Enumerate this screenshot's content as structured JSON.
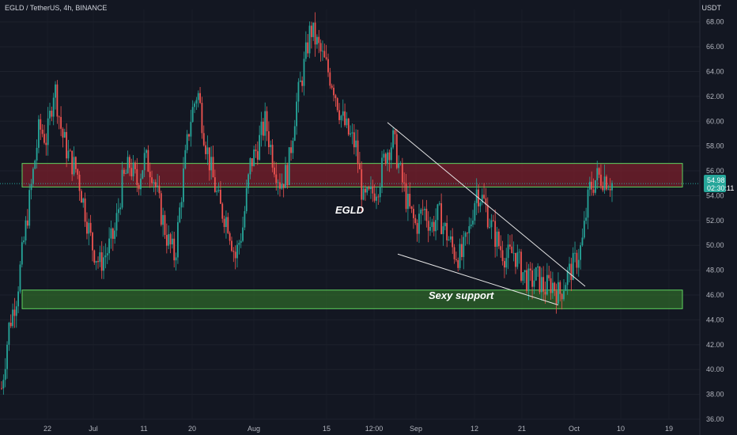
{
  "header": {
    "title": "EGLD / TetherUS, 4h, BINANCE",
    "unit": "USDT"
  },
  "colors": {
    "background": "#131722",
    "up": "#26a69a",
    "down": "#ef5350",
    "resistance_fill": "#7a1f2b",
    "support_fill": "#2f6b2a",
    "zone_border": "#5fd35f",
    "trendline": "#e6e6e6",
    "price_tag": "#26a69a"
  },
  "chart_data": {
    "type": "candlestick",
    "ylim": [
      36,
      69
    ],
    "yticks": [
      "36.00",
      "38.00",
      "40.00",
      "42.00",
      "44.00",
      "46.00",
      "48.00",
      "50.00",
      "52.00",
      "54.00",
      "56.00",
      "58.00",
      "60.00",
      "62.00",
      "64.00",
      "66.00",
      "68.00"
    ],
    "xticks": [
      "22",
      "Jul",
      "11",
      "20",
      "Aug",
      "15",
      "12:00",
      "Sep",
      "12",
      "21",
      "Oct",
      "10",
      "19"
    ],
    "last_price": "54.98",
    "countdown": "02:30:11",
    "close_approx": [
      38.5,
      43.5,
      46.0,
      50.5,
      55.0,
      59.5,
      58.5,
      63.0,
      59.0,
      57.0,
      56.0,
      53.0,
      50.0,
      48.5,
      49.5,
      51.0,
      55.0,
      56.5,
      55.0,
      57.0,
      56.0,
      53.0,
      50.5,
      49.0,
      55.0,
      60.0,
      62.5,
      58.5,
      55.5,
      53.0,
      52.0,
      49.0,
      51.5,
      56.5,
      58.0,
      60.0,
      57.0,
      55.0,
      56.0,
      61.0,
      64.0,
      67.5,
      66.0,
      64.5,
      63.0,
      60.5,
      59.0,
      58.0,
      53.5,
      54.0,
      55.0,
      57.5,
      58.5,
      55.5,
      53.0,
      51.5,
      53.0,
      51.5,
      52.5,
      51.0,
      49.5,
      49.0,
      51.0,
      54.5,
      53.5,
      51.5,
      50.0,
      49.0,
      49.5,
      48.0,
      47.0,
      47.5,
      46.5,
      47.0,
      46.0,
      47.5,
      48.5,
      50.0,
      54.5,
      55.5,
      55.5,
      55.0
    ],
    "zones": [
      {
        "label": "",
        "low": 54.7,
        "high": 56.6
      },
      {
        "label": "Sexy support",
        "low": 44.9,
        "high": 46.4
      }
    ],
    "annotations": [
      "EGLD",
      "Sexy support"
    ],
    "trendlines": [
      {
        "from": {
          "x": "12:00",
          "y": 59.9
        },
        "to": {
          "x": "Oct",
          "y": 46.7
        }
      },
      {
        "from": {
          "x": "Sep",
          "y": 49.3
        },
        "to": {
          "x": "Oct",
          "y": 45.2
        }
      }
    ]
  }
}
